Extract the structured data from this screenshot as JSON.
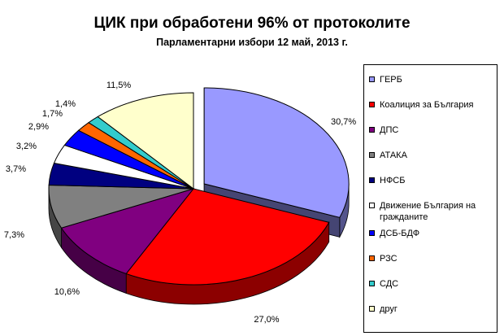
{
  "title": "ЦИК при обработени 96% от протоколите",
  "subtitle": "Парламентарни избори 12 май, 2013 г.",
  "chart_data": {
    "type": "pie",
    "title": "ЦИК при обработени 96% от протоколите",
    "subtitle": "Парламентарни избори 12 май, 2013 г.",
    "legend_position": "right",
    "exploded": true,
    "three_d": true,
    "series": [
      {
        "name": "ГЕРБ",
        "value": 30.7,
        "label": "30,7%",
        "color": "#9999ff"
      },
      {
        "name": "Коалиция за България",
        "value": 27.0,
        "label": "27,0%",
        "color": "#ff0000"
      },
      {
        "name": "ДПС",
        "value": 10.6,
        "label": "10,6%",
        "color": "#800080"
      },
      {
        "name": "АТАКА",
        "value": 7.3,
        "label": "7,3%",
        "color": "#808080"
      },
      {
        "name": "НФСБ",
        "value": 3.7,
        "label": "3,7%",
        "color": "#000080"
      },
      {
        "name": "Движение България на гражданите",
        "value": 3.2,
        "label": "3,2%",
        "color": "#ffffff"
      },
      {
        "name": "ДСБ-БДФ",
        "value": 2.9,
        "label": "2,9%",
        "color": "#0000ff"
      },
      {
        "name": "РЗС",
        "value": 1.7,
        "label": "1,7%",
        "color": "#ff6600"
      },
      {
        "name": "СДС",
        "value": 1.4,
        "label": "1,4%",
        "color": "#33cccc"
      },
      {
        "name": "друг",
        "value": 11.5,
        "label": "11,5%",
        "color": "#ffffcc"
      }
    ]
  }
}
